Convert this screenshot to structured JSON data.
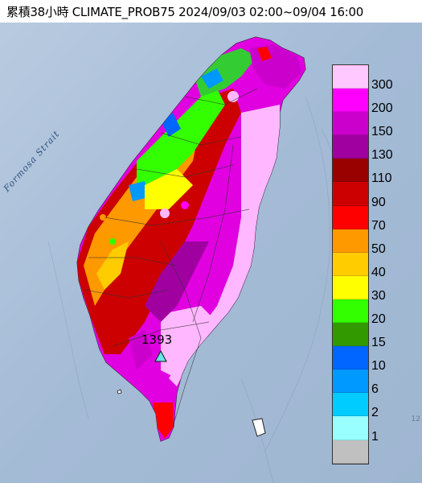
{
  "title": "累積38小時 CLIMATE_PROB75 2024/09/03 02:00~09/04 16:00",
  "strait_label": "Formosa Strait",
  "max_value_label": "1393",
  "corner_label": "12",
  "legend": {
    "items": [
      {
        "label": "300",
        "color": "#ffc8ff"
      },
      {
        "label": "200",
        "color": "#ff00ff"
      },
      {
        "label": "150",
        "color": "#cc00cc"
      },
      {
        "label": "130",
        "color": "#a000a0"
      },
      {
        "label": "110",
        "color": "#990000"
      },
      {
        "label": "90",
        "color": "#cc0000"
      },
      {
        "label": "70",
        "color": "#ff0000"
      },
      {
        "label": "50",
        "color": "#ff9900"
      },
      {
        "label": "40",
        "color": "#ffcc00"
      },
      {
        "label": "30",
        "color": "#ffff00"
      },
      {
        "label": "20",
        "color": "#33ff00"
      },
      {
        "label": "15",
        "color": "#339900"
      },
      {
        "label": "10",
        "color": "#0066ff"
      },
      {
        "label": "6",
        "color": "#0099ff"
      },
      {
        "label": "2",
        "color": "#00ccff"
      },
      {
        "label": "1",
        "color": "#99ffff"
      },
      {
        "label": "",
        "color": "#c0c0c0"
      }
    ]
  },
  "colors": {
    "sea": "#a9bed6",
    "max_marker": "#66e5e5"
  }
}
